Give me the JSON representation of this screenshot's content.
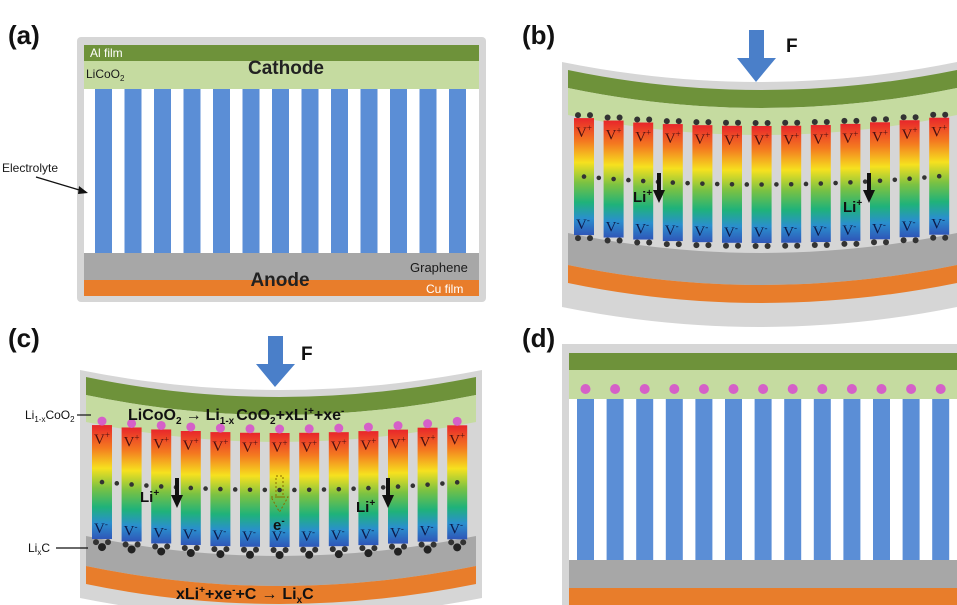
{
  "colors": {
    "frame": "#d6d6d6",
    "al_film": "#6e923a",
    "licoo2": "#c5dba0",
    "electrolyte": "#ffffff",
    "pillar": "#5b8ed6",
    "graphene": "#a7a7a7",
    "cu_film": "#e87d2b",
    "arrow": "#4a7fc9",
    "li_dot": "#d560c8",
    "dark_dot": "#3a3a3a"
  },
  "panel_a": {
    "label": "(a)",
    "al_film": "Al film",
    "licoo2": "LiCoO",
    "licoo2_sub": "2",
    "cathode": "Cathode",
    "electrolyte": "Electrolyte",
    "graphene": "Graphene",
    "anode": "Anode",
    "cu_film": "Cu film"
  },
  "panel_b": {
    "label": "(b)",
    "force": "F",
    "v_plus": "V",
    "v_plus_sup": "+",
    "v_minus": "V",
    "v_minus_sup": "-",
    "li": "Li",
    "li_sup": "+"
  },
  "panel_c": {
    "label": "(c)",
    "force": "F",
    "cathode_eq": {
      "a": "LiCoO",
      "a_sub": "2",
      "arrow": "→",
      "b": "Li",
      "b_sub": "1-x",
      "c": "CoO",
      "c_sub": "2",
      "d": "+xLi",
      "d_sup": "+",
      "e": "+xe",
      "e_sup": "-"
    },
    "anode_eq": {
      "a": "xLi",
      "a_sup": "+",
      "b": "+xe",
      "b_sup": "-",
      "c": "+C",
      "arrow": "→",
      "d": "Li",
      "d_sub": "x",
      "e": "C"
    },
    "li1x_label": {
      "a": "Li",
      "a_sub": "1-x",
      "b": "CoO",
      "b_sub": "2"
    },
    "lixc_label": {
      "a": "Li",
      "a_sub": "x",
      "b": "C"
    },
    "electron": "e",
    "electron_sup": "-",
    "li": "Li",
    "li_sup": "+"
  },
  "panel_d": {
    "label": "(d)"
  }
}
